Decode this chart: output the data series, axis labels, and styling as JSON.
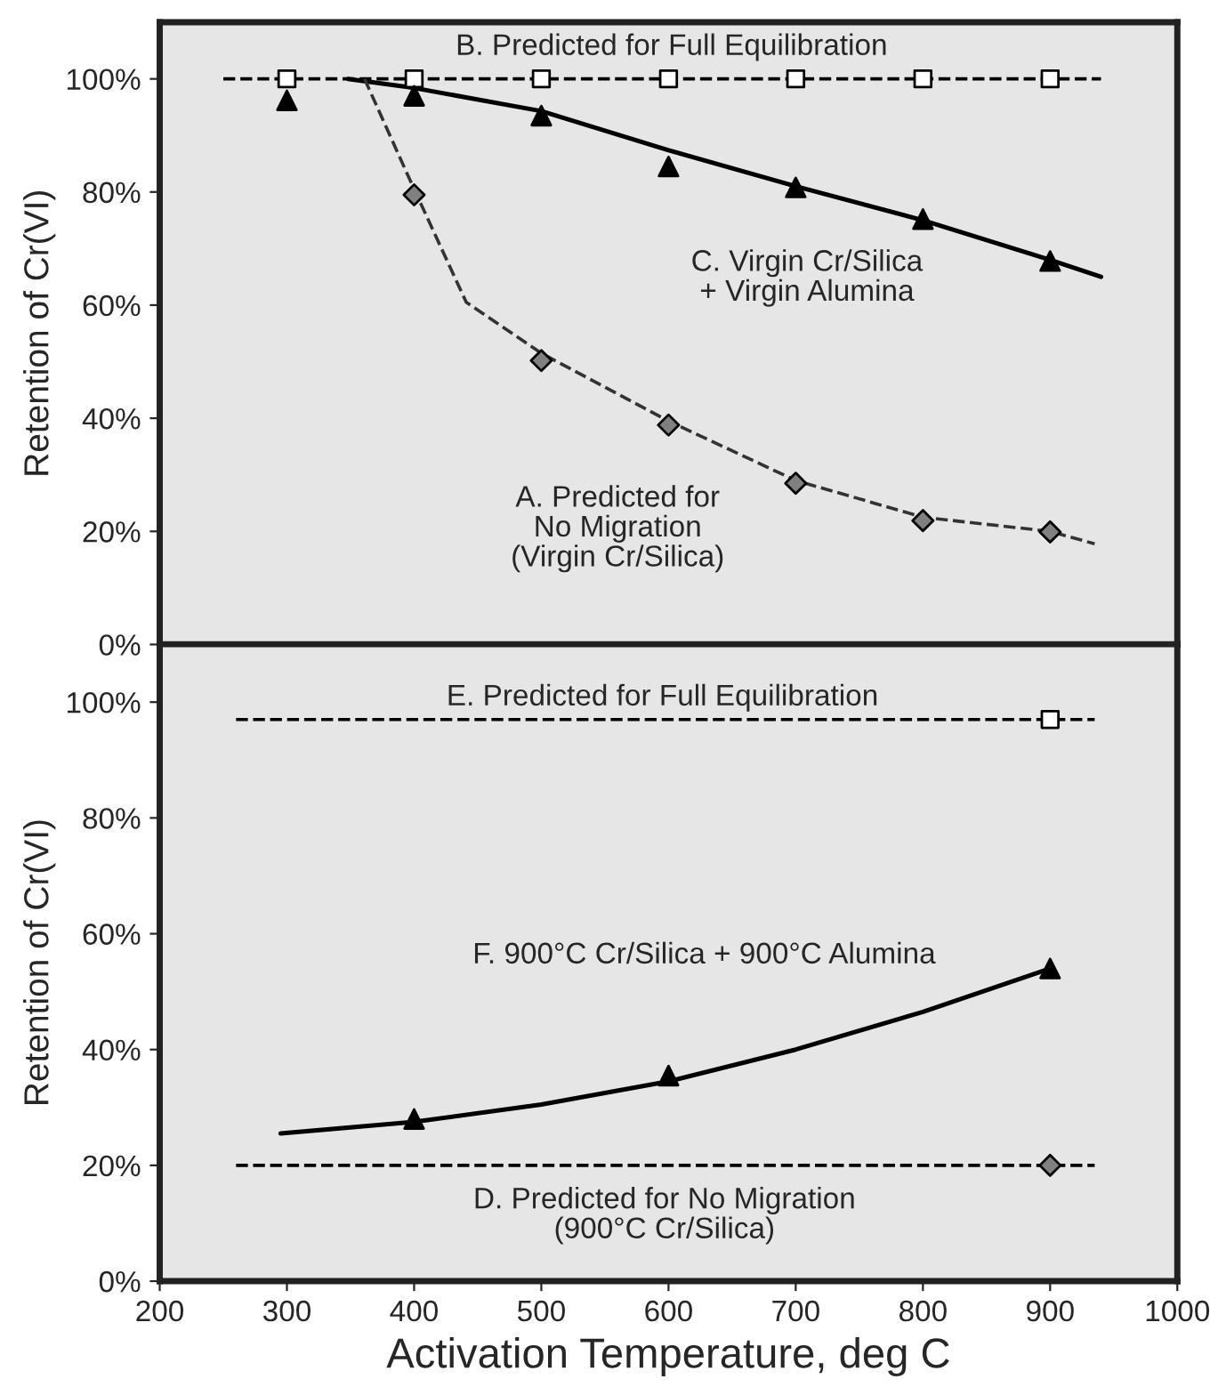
{
  "chart_data": [
    {
      "type": "scatter",
      "ylabel": "Retention of Cr(VI)",
      "xlim": [
        200,
        1000
      ],
      "xticks": [
        200,
        300,
        400,
        500,
        600,
        700,
        800,
        900,
        1000
      ],
      "ylim": [
        0,
        110
      ],
      "yticks": [
        {
          "value": 0,
          "label": "0%"
        },
        {
          "value": 20,
          "label": "20%"
        },
        {
          "value": 40,
          "label": "40%"
        },
        {
          "value": 60,
          "label": "60%"
        },
        {
          "value": 80,
          "label": "80%"
        },
        {
          "value": 100,
          "label": "100%"
        }
      ],
      "tick_labels": "y",
      "grid": false,
      "series": [
        {
          "type": "line",
          "color": "#000000",
          "line_style": "dashed",
          "marker": "none",
          "x": [
            250,
            940
          ],
          "values": [
            100,
            100
          ]
        },
        {
          "type": "line",
          "color": "#000000",
          "line_style": "solid",
          "marker": "none",
          "x": [
            348,
            400,
            500,
            600,
            700,
            800,
            900,
            940
          ],
          "values": [
            100,
            98.4,
            94.3,
            87.4,
            81,
            75,
            68,
            65
          ]
        },
        {
          "type": "line",
          "color": "#333333",
          "line_style": "dashed",
          "marker": "none",
          "x": [
            361,
            400,
            441,
            500,
            600,
            700,
            800,
            900,
            935
          ],
          "values": [
            100,
            80.5,
            60.5,
            51.5,
            39.5,
            29,
            22.5,
            20,
            17.8
          ]
        },
        {
          "color": "#ffffff",
          "marker": "square",
          "x": [
            300,
            400,
            500,
            600,
            700,
            800,
            900
          ],
          "values": [
            100,
            100,
            100,
            100,
            100,
            100,
            100
          ]
        },
        {
          "color": "#000000",
          "marker": "triangle",
          "x": [
            300,
            400,
            500,
            600,
            700,
            800,
            900
          ],
          "values": [
            96.2,
            97,
            93.5,
            84.5,
            80.8,
            75.2,
            67.8
          ]
        },
        {
          "color": "#808080",
          "marker": "diamond",
          "x": [
            400,
            500,
            600,
            700,
            800,
            900
          ],
          "values": [
            79.5,
            50.2,
            38.8,
            28.5,
            21.9,
            19.9
          ]
        }
      ],
      "annotations": [
        "B. Predicted for Full Equilibration",
        "C. Virgin Cr/Silica\n+ Virgin Alumina",
        "A. Predicted for\nNo Migration\n(Virgin Cr/Silica)"
      ]
    },
    {
      "type": "scatter",
      "ylabel": "Retention of Cr(VI)",
      "xlabel": "Activation Temperature, deg C",
      "xlim": [
        200,
        1000
      ],
      "xticks": [
        200,
        300,
        400,
        500,
        600,
        700,
        800,
        900,
        1000
      ],
      "ylim": [
        0,
        110
      ],
      "yticks": [
        {
          "value": 0,
          "label": "0%"
        },
        {
          "value": 20,
          "label": "20%"
        },
        {
          "value": 40,
          "label": "40%"
        },
        {
          "value": 60,
          "label": "60%"
        },
        {
          "value": 80,
          "label": "80%"
        },
        {
          "value": 100,
          "label": "100%"
        }
      ],
      "grid": false,
      "series": [
        {
          "type": "line",
          "color": "#000000",
          "line_style": "dashed",
          "marker": "none",
          "x": [
            260,
            935
          ],
          "values": [
            97,
            97
          ]
        },
        {
          "type": "line",
          "color": "#000000",
          "line_style": "dashed",
          "marker": "none",
          "x": [
            260,
            935
          ],
          "values": [
            20,
            20
          ]
        },
        {
          "type": "line",
          "color": "#000000",
          "line_style": "solid",
          "marker": "none",
          "x": [
            295,
            400,
            500,
            600,
            700,
            800,
            900
          ],
          "values": [
            25.5,
            27.5,
            30.5,
            34.5,
            40,
            46.5,
            54
          ]
        },
        {
          "color": "#ffffff",
          "marker": "square",
          "x": [
            900
          ],
          "values": [
            97
          ]
        },
        {
          "color": "#808080",
          "marker": "diamond",
          "x": [
            900
          ],
          "values": [
            20
          ]
        },
        {
          "color": "#000000",
          "marker": "triangle",
          "x": [
            400,
            600,
            900
          ],
          "values": [
            28,
            35.5,
            54
          ]
        }
      ],
      "annotations": [
        "E. Predicted for Full Equilibration",
        "F. 900°C Cr/Silica + 900°C Alumina",
        "D. Predicted for No Migration\n(900°C Cr/Silica)"
      ]
    }
  ]
}
